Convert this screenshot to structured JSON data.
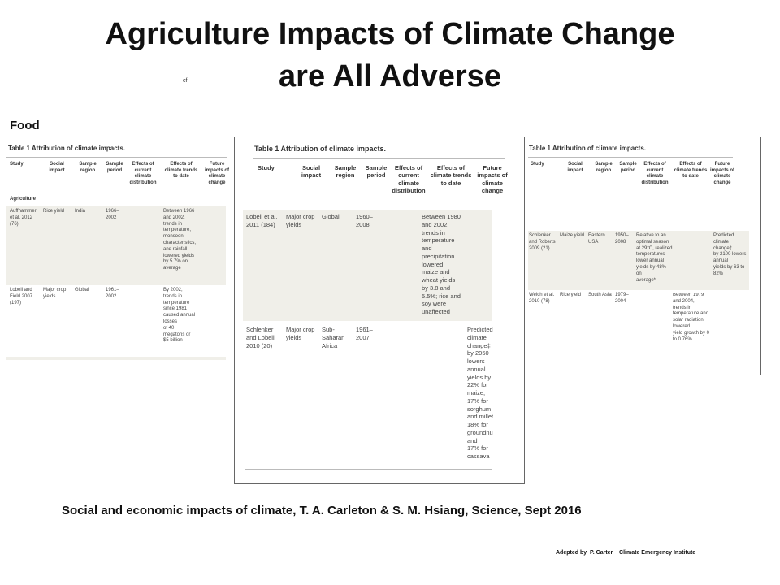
{
  "slide": {
    "title_line1": "Agriculture Impacts of Climate Change",
    "title_line2": "are All Adverse",
    "stray_mark": "cf",
    "section_label": "Food",
    "citation": "Social and economic impacts of climate, T. A. Carleton & S. M. Hsiang, Science, Sept 2016",
    "credit": "Adepted by  P. Carter    Climate Emergency Institute"
  },
  "table": {
    "title": "Table 1 Attribution of climate impacts.",
    "headers": [
      "Study",
      "Social\nimpact",
      "Sample\nregion",
      "Sample\nperiod",
      "Effects of\ncurrent\nclimate\ndistribution",
      "Effects of\nclimate\ntrends to date",
      "Future\nimpacts of\nclimate\nchange"
    ],
    "section_agriculture": "Agriculture"
  },
  "left_rows": [
    {
      "study": "Auffhammer\net al. 2012\n(76)",
      "impact": "Rice yield",
      "region": "India",
      "period": "1966–\n2002",
      "trends": "Between 1966\nand 2002,\ntrends in\ntemperature,\nmonsoon\ncharacteristics,\nand rainfall\nlowered yields\nby 5.7% on\naverage"
    },
    {
      "study": "Lobell and\nField 2007\n(197)",
      "impact": "Major crop\nyields",
      "region": "Global",
      "period": "1961–\n2002",
      "trends": "By 2002,\ntrends in\ntemperature\nsince 1981\ncaused annual\nlosses\nof 40\nmegatons or\n$5 billion"
    }
  ],
  "center_rows": [
    {
      "study": "Lobell et al.\n2011 (184)",
      "impact": "Major crop\nyields",
      "region": "Global",
      "period": "1960–\n2008",
      "trends": "Between 1980\nand 2002,\ntrends in\ntemperature\nand\nprecipitation\nlowered\nmaize and\nwheat yields\nby 3.8 and\n5.5%; rice and\nsoy were\nunaffected"
    },
    {
      "study": "Schlenker\nand Lobell\n2010 (20)",
      "impact": "Major crop\nyields",
      "region": "Sub-\nSaharan\nAfrica",
      "period": "1961–\n2007",
      "future": "Predicted\nclimate\nchange‡\nby 2050\nlowers\nannual\nyields by\n22% for\nmaize,\n17% for\nsorghum\nand millet\n18% for\ngroundnu\nand\n17% for\ncassava"
    }
  ],
  "right_rows": [
    {
      "study": "Schlenker\nand Roberts\n2009 (21)",
      "impact": "Maize yield",
      "region": "Eastern\nUSA",
      "period": "1950–\n2008",
      "current": "Relative to an\noptimal season\nat 29°C, realized\ntemperatures\nlower annual\nyields by 48%\non\naverage*",
      "future": "Predicted\nclimate\nchange‡\nby 2100 lowers\nannual\nyields by 63 to\n82%"
    },
    {
      "study": "Welch et al.\n2010 (78)",
      "impact": "Rice yield",
      "region": "South Asia",
      "period": "1979–\n2004",
      "trends": "Between 1979\nand 2004,\ntrends in\ntemperature and\nsolar radiation\nlowered\nyield growth by 0\nto 0.76%"
    }
  ]
}
